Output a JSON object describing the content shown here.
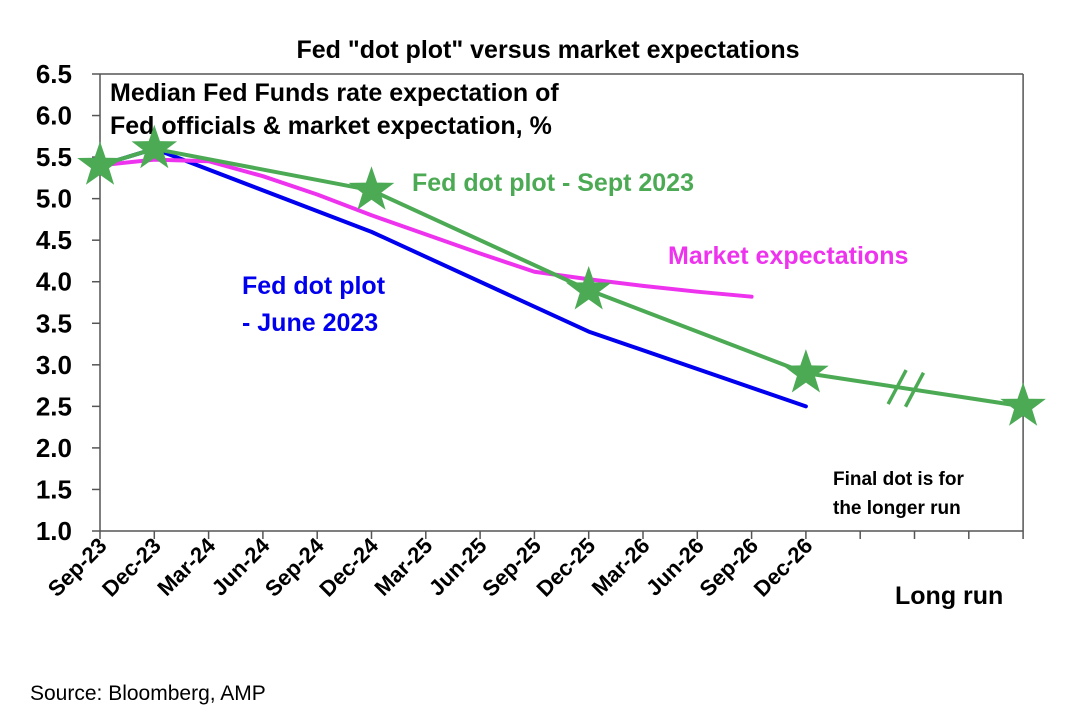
{
  "chart_data": {
    "type": "line",
    "title": "Fed \"dot plot\" versus market expectations",
    "subtitle": [
      "Median Fed Funds rate expectation of",
      "Fed officials & market expectation, %"
    ],
    "xlabel": "",
    "ylabel": "",
    "ylim": [
      1.0,
      6.5
    ],
    "yticks": [
      "1.0",
      "1.5",
      "2.0",
      "2.5",
      "3.0",
      "3.5",
      "4.0",
      "4.5",
      "5.0",
      "5.5",
      "6.0",
      "6.5"
    ],
    "categories": [
      "Sep-23",
      "Dec-23",
      "Mar-24",
      "Jun-24",
      "Sep-24",
      "Dec-24",
      "Mar-25",
      "Jun-25",
      "Sep-25",
      "Dec-25",
      "Mar-26",
      "Jun-26",
      "Sep-26",
      "Dec-26",
      "",
      "",
      "",
      "Long run"
    ],
    "xtick_labels": [
      "Sep-23",
      "Dec-23",
      "Mar-24",
      "Jun-24",
      "Sep-24",
      "Dec-24",
      "Mar-25",
      "Jun-25",
      "Sep-25",
      "Dec-25",
      "Mar-26",
      "Jun-26",
      "Sep-26",
      "Dec-26"
    ],
    "long_run_label": "Long run",
    "series": [
      {
        "name": "Fed dot plot - June 2023",
        "label_lines": [
          "Fed dot plot",
          "- June 2023"
        ],
        "color": "#0000ee",
        "points": [
          [
            0,
            5.4
          ],
          [
            1,
            5.6
          ],
          [
            5,
            4.6
          ],
          [
            9,
            3.4
          ],
          [
            13,
            2.5
          ]
        ]
      },
      {
        "name": "Market expectations",
        "label_lines": [
          "Market expectations"
        ],
        "color": "#ee33ee",
        "points": [
          [
            0,
            5.4
          ],
          [
            1,
            5.47
          ],
          [
            2,
            5.45
          ],
          [
            3,
            5.27
          ],
          [
            4,
            5.05
          ],
          [
            5,
            4.8
          ],
          [
            6,
            4.57
          ],
          [
            7,
            4.34
          ],
          [
            8,
            4.12
          ],
          [
            9,
            4.03
          ],
          [
            10,
            3.95
          ],
          [
            11,
            3.88
          ],
          [
            12,
            3.82
          ]
        ]
      },
      {
        "name": "Fed dot plot - Sept 2023",
        "label_lines": [
          "Fed dot plot - Sept 2023"
        ],
        "color": "#4caa55",
        "marker": "star",
        "points": [
          [
            0,
            5.4
          ],
          [
            1,
            5.6
          ],
          [
            5,
            5.1
          ],
          [
            9,
            3.9
          ],
          [
            13,
            2.9
          ],
          [
            17,
            2.5
          ]
        ]
      }
    ],
    "annotations": [
      "Final dot is for",
      "the longer run"
    ],
    "axis_break_between": [
      "Dec-26",
      "Long run"
    ],
    "grid": false,
    "legend": "inline labels"
  },
  "source": "Source: Bloomberg, AMP"
}
